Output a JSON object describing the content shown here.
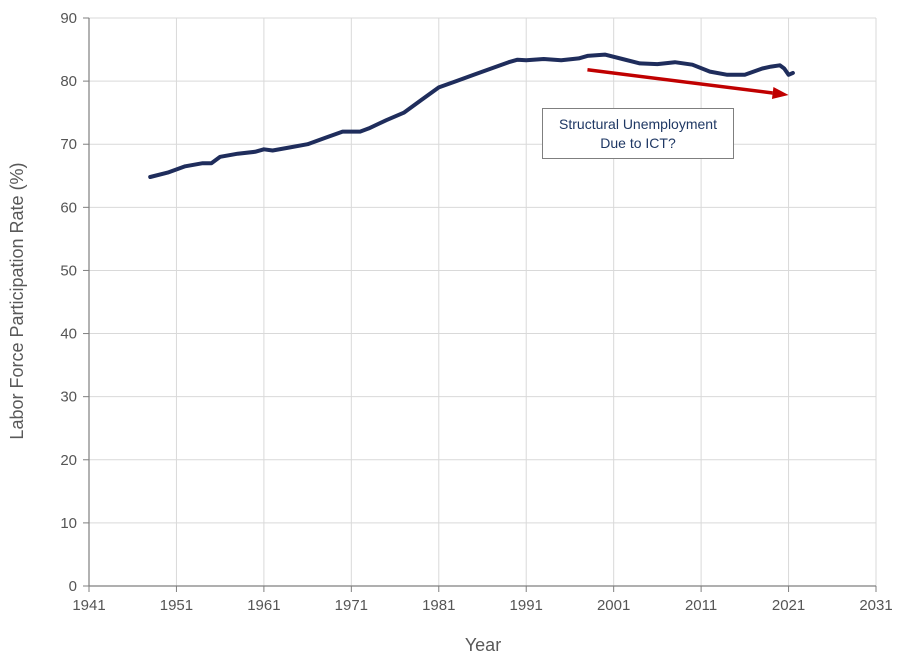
{
  "chart_data": {
    "type": "line",
    "title": "",
    "xlabel": "Year",
    "ylabel": "Labor Force Participation Rate (%)",
    "xlim": [
      1941,
      2031
    ],
    "ylim": [
      0,
      90
    ],
    "x_ticks": [
      1941,
      1951,
      1961,
      1971,
      1981,
      1991,
      2001,
      2011,
      2021,
      2031
    ],
    "y_ticks": [
      0,
      10,
      20,
      30,
      40,
      50,
      60,
      70,
      80,
      90
    ],
    "grid": true,
    "legend": "none",
    "series": [
      {
        "color": "#1f2d5c",
        "x": [
          1948,
          1950,
          1952,
          1954,
          1955,
          1956,
          1958,
          1960,
          1961,
          1962,
          1964,
          1966,
          1968,
          1970,
          1972,
          1973,
          1975,
          1977,
          1979,
          1981,
          1983,
          1985,
          1987,
          1989,
          1990,
          1991,
          1993,
          1995,
          1997,
          1998,
          2000,
          2002,
          2004,
          2006,
          2008,
          2010,
          2012,
          2014,
          2016,
          2018,
          2019,
          2020,
          2020.5,
          2021,
          2021.5
        ],
        "values": [
          64.8,
          65.5,
          66.5,
          67.0,
          67.0,
          68.0,
          68.5,
          68.8,
          69.2,
          69.0,
          69.5,
          70.0,
          71.0,
          72.0,
          72.0,
          72.5,
          73.8,
          75.0,
          77.0,
          79.0,
          80.0,
          81.0,
          82.0,
          83.0,
          83.4,
          83.3,
          83.5,
          83.3,
          83.6,
          84.0,
          84.2,
          83.5,
          82.8,
          82.7,
          83.0,
          82.6,
          81.5,
          81.0,
          81.0,
          82.0,
          82.3,
          82.5,
          82.0,
          81.0,
          81.3
        ]
      }
    ],
    "annotations": [
      {
        "text": "Structural Unemployment\nDue to ICT?"
      }
    ],
    "arrow": {
      "color": "#c00000",
      "x": [
        1998,
        2021
      ],
      "y": [
        81.8,
        77.8
      ]
    }
  }
}
